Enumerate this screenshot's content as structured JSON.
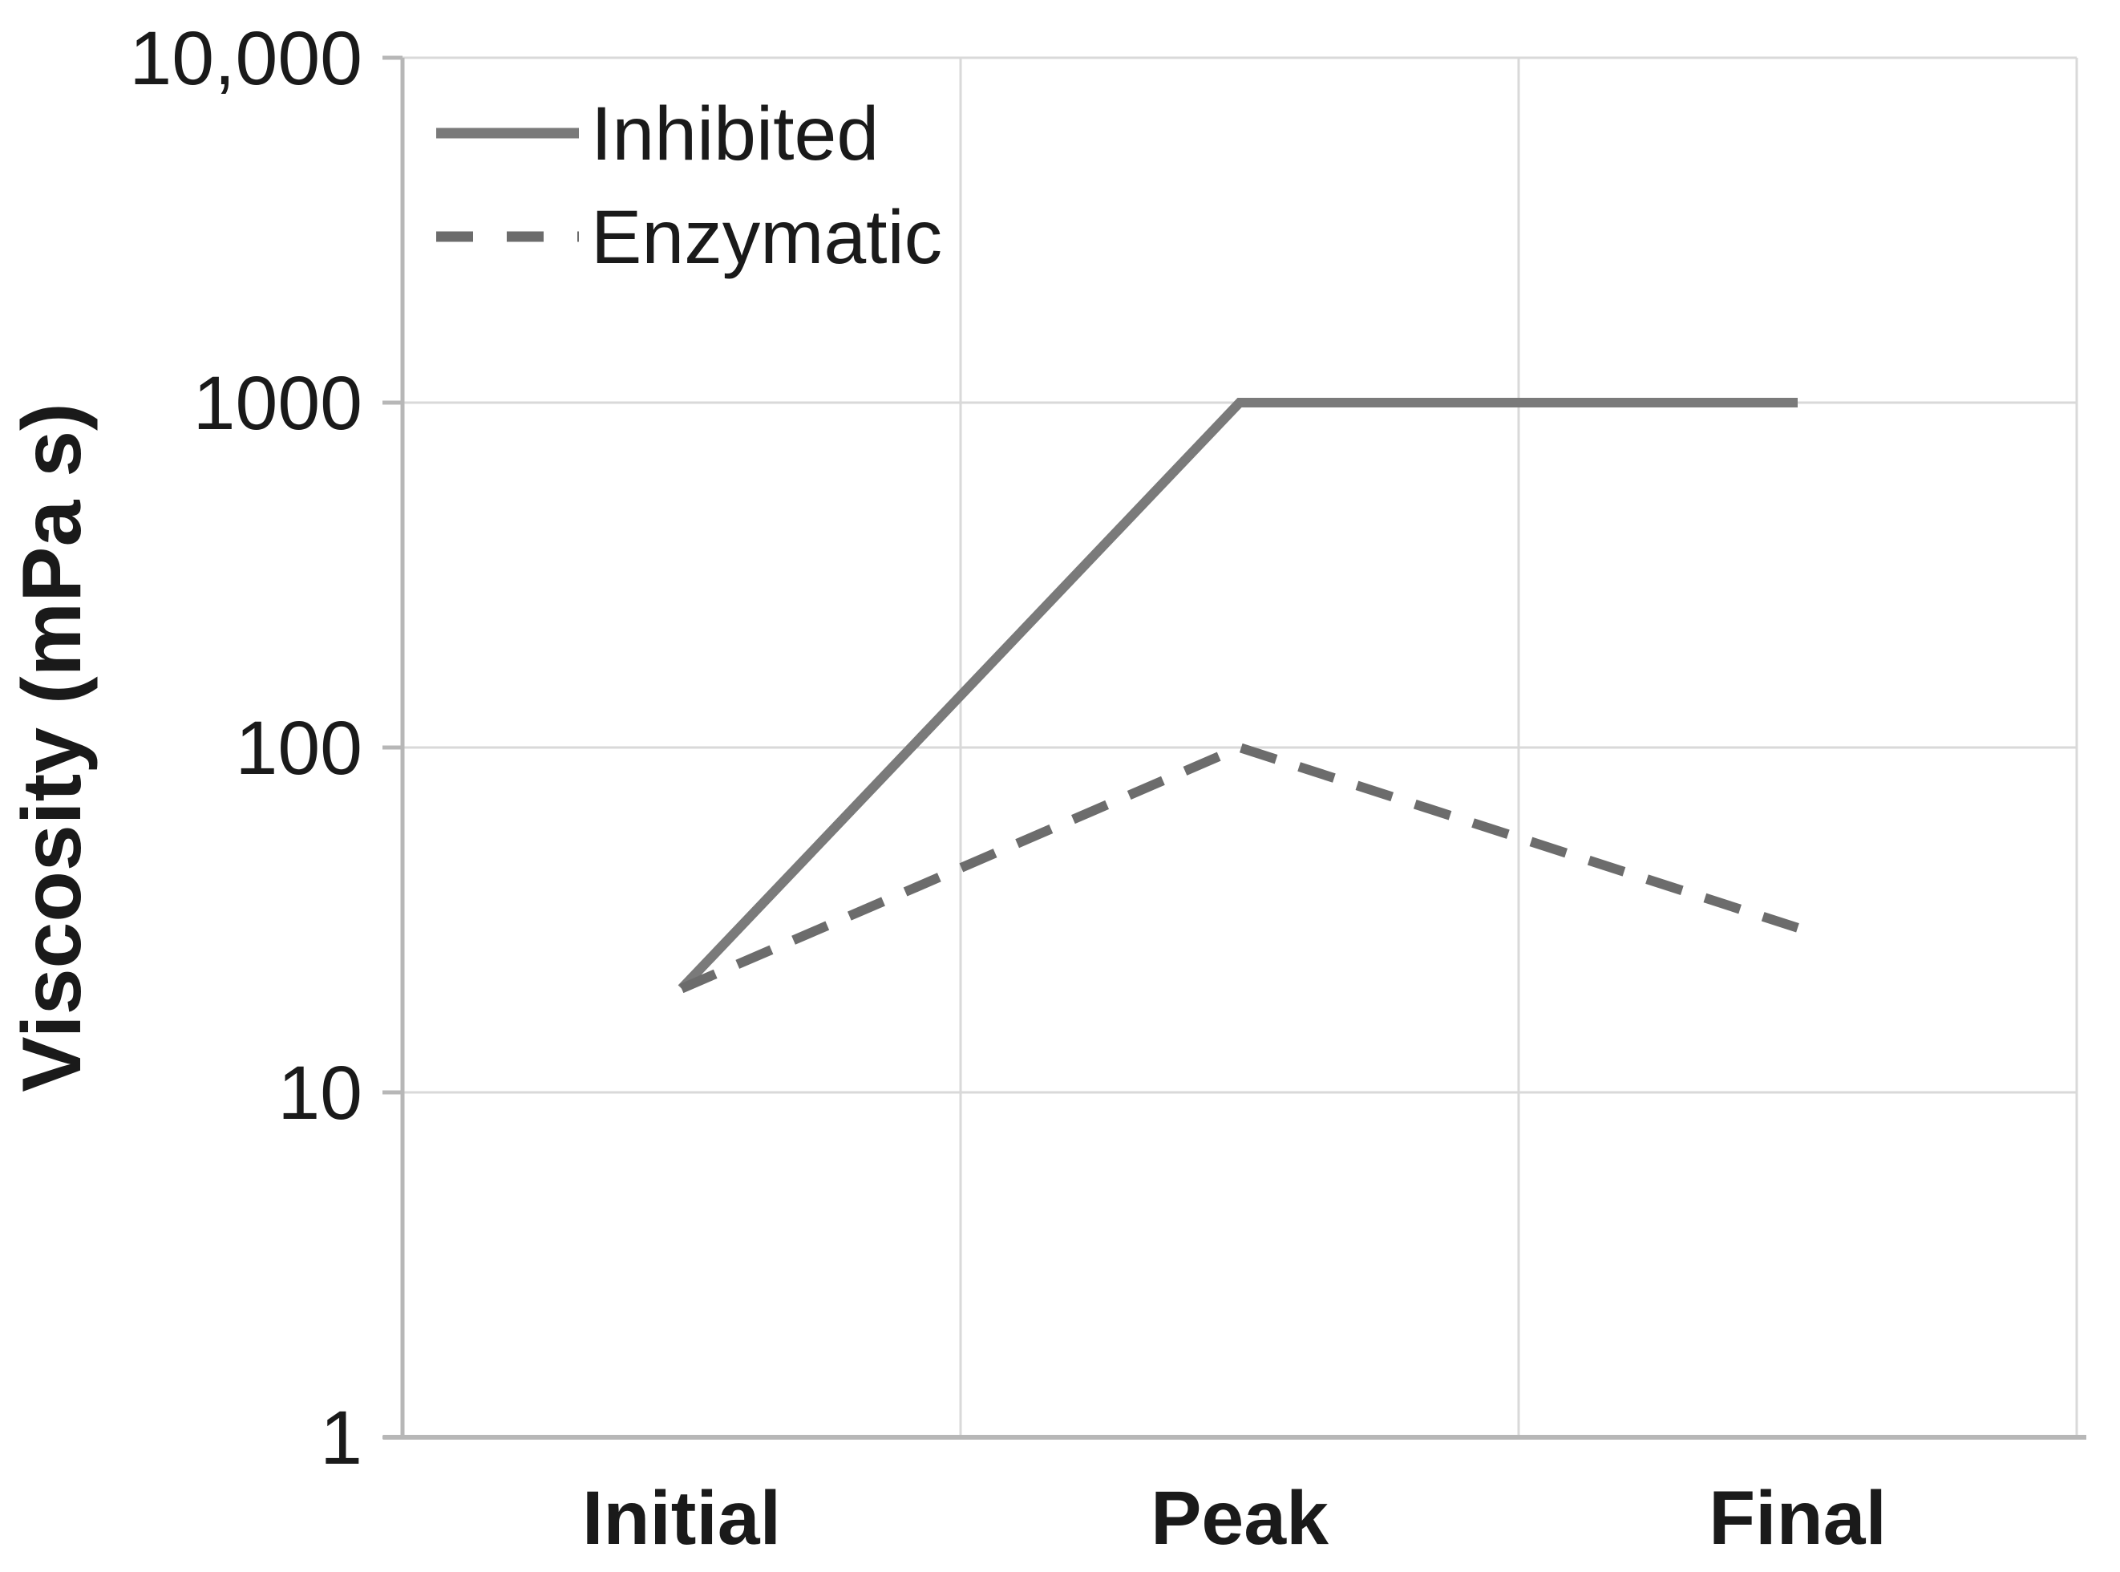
{
  "chart_data": {
    "type": "line",
    "title": "",
    "xlabel": "",
    "ylabel": "Viscosity (mPa s)",
    "y_scale": "log",
    "ylim": [
      1,
      10000
    ],
    "grid": true,
    "legend_position": "top-left-inside",
    "categories": [
      "Initial",
      "Peak",
      "Final"
    ],
    "y_ticks": [
      {
        "label": "10,000",
        "value": 10000
      },
      {
        "label": "1000",
        "value": 1000
      },
      {
        "label": "100",
        "value": 100
      },
      {
        "label": "10",
        "value": 10
      },
      {
        "label": "1",
        "value": 1
      }
    ],
    "series": [
      {
        "name": "Inhibited",
        "line_style": "solid",
        "color": "#7a7a7a",
        "values": [
          20,
          1000,
          1000
        ]
      },
      {
        "name": "Enzymatic",
        "line_style": "dashed",
        "color": "#6c6c6c",
        "values": [
          20,
          100,
          30
        ]
      }
    ],
    "colors": {
      "gridline": "#d9d9d9",
      "axis": "#b7b7b7",
      "text": "#1a1a1a"
    }
  }
}
